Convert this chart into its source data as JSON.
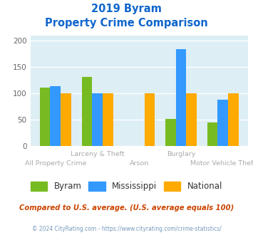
{
  "title_line1": "2019 Byram",
  "title_line2": "Property Crime Comparison",
  "groups": [
    {
      "name": "All Property Crime",
      "byram": 110,
      "mississippi": 113,
      "national": 100,
      "label_row": "bottom"
    },
    {
      "name": "Larceny & Theft",
      "byram": 131,
      "mississippi": 100,
      "national": 100,
      "label_row": "top"
    },
    {
      "name": "Arson",
      "byram": 0,
      "mississippi": 0,
      "national": 100,
      "label_row": "bottom"
    },
    {
      "name": "Burglary",
      "byram": 51,
      "mississippi": 184,
      "national": 100,
      "label_row": "top"
    },
    {
      "name": "Motor Vehicle Theft",
      "byram": 44,
      "mississippi": 87,
      "national": 100,
      "label_row": "bottom"
    }
  ],
  "color_byram": "#77bb22",
  "color_mississippi": "#3399ff",
  "color_national": "#ffaa00",
  "title_color": "#1166cc",
  "plot_bg_color": "#ddeef5",
  "ylim": [
    0,
    210
  ],
  "yticks": [
    0,
    50,
    100,
    150,
    200
  ],
  "footnote": "Compared to U.S. average. (U.S. average equals 100)",
  "footnote2": "© 2024 CityRating.com - https://www.cityrating.com/crime-statistics/",
  "footnote_color": "#cc4400",
  "footnote2_color": "#7799bb",
  "label_color": "#aaaaaa",
  "legend_label_color": "#333333"
}
